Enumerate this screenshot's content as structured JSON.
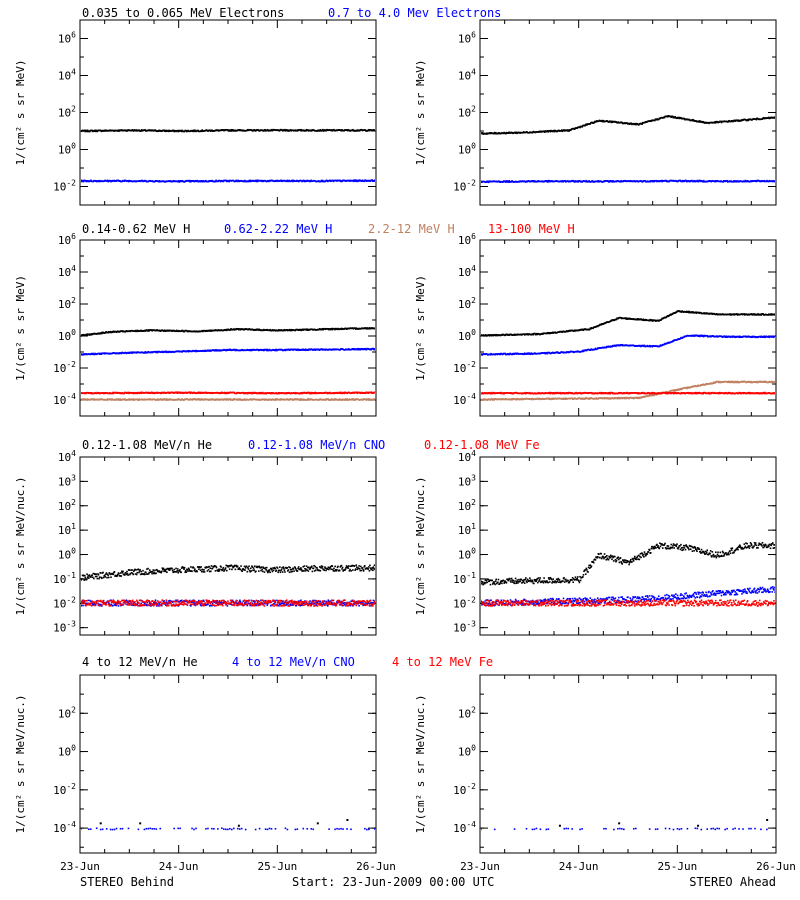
{
  "chart_data": [
    {
      "type": "scatter",
      "panel": "row1-behind",
      "ylabel": "1/(cm² s sr MeV)",
      "yscale": "log",
      "ylim": [
        0.001,
        10000000
      ],
      "ytick_exps": [
        -2,
        0,
        2,
        4,
        6
      ],
      "xlim": [
        0,
        3
      ],
      "x_tick_labels": [
        "23-Jun",
        "24-Jun",
        "25-Jun",
        "26-Jun"
      ],
      "series": [
        {
          "name": "0.035 to 0.065 MeV Electrons",
          "color": "#000000",
          "x": [
            0,
            0.5,
            1.0,
            1.5,
            2.0,
            2.5,
            3.0
          ],
          "y": [
            11,
            12,
            11,
            12,
            12,
            12,
            12
          ]
        },
        {
          "name": "0.7 to 4.0 Mev Electrons",
          "color": "#0000ff",
          "x": [
            0,
            0.5,
            1.0,
            1.5,
            2.0,
            2.5,
            3.0
          ],
          "y": [
            0.022,
            0.022,
            0.021,
            0.022,
            0.022,
            0.022,
            0.023
          ]
        }
      ]
    },
    {
      "type": "scatter",
      "panel": "row1-ahead",
      "ylabel": "1/(cm² s sr MeV)",
      "yscale": "log",
      "ylim": [
        0.001,
        10000000
      ],
      "ytick_exps": [
        -2,
        0,
        2,
        4,
        6
      ],
      "xlim": [
        0,
        3
      ],
      "x_tick_labels": [
        "23-Jun",
        "24-Jun",
        "25-Jun",
        "26-Jun"
      ],
      "series": [
        {
          "name": "0.035 to 0.065 MeV Electrons",
          "color": "#000000",
          "x": [
            0,
            0.4,
            0.9,
            1.2,
            1.6,
            1.9,
            2.3,
            2.6,
            3.0
          ],
          "y": [
            8,
            9,
            12,
            40,
            25,
            70,
            30,
            40,
            60
          ]
        },
        {
          "name": "0.7 to 4.0 Mev Electrons",
          "color": "#0000ff",
          "x": [
            0,
            0.5,
            1.0,
            1.5,
            2.0,
            2.5,
            3.0
          ],
          "y": [
            0.02,
            0.021,
            0.021,
            0.021,
            0.022,
            0.021,
            0.022
          ]
        }
      ]
    },
    {
      "type": "scatter",
      "panel": "row2-behind",
      "ylabel": "1/(cm² s sr MeV)",
      "yscale": "log",
      "ylim": [
        1e-05,
        1000000
      ],
      "ytick_exps": [
        -4,
        -2,
        0,
        2,
        4,
        6
      ],
      "xlim": [
        0,
        3
      ],
      "x_tick_labels": [
        "23-Jun",
        "24-Jun",
        "25-Jun",
        "26-Jun"
      ],
      "series": [
        {
          "name": "0.14-0.62 MeV H",
          "color": "#000000",
          "x": [
            0,
            0.3,
            0.7,
            1.2,
            1.6,
            2.0,
            2.5,
            3.0
          ],
          "y": [
            1.2,
            2,
            2.5,
            2.2,
            3,
            2.5,
            3,
            3.5
          ]
        },
        {
          "name": "0.62-2.22 MeV H",
          "color": "#0000ff",
          "x": [
            0,
            0.5,
            1.0,
            1.5,
            2.0,
            2.5,
            3.0
          ],
          "y": [
            0.08,
            0.1,
            0.12,
            0.15,
            0.15,
            0.16,
            0.17
          ]
        },
        {
          "name": "2.2-12 MeV H",
          "color": "#c08060",
          "x": [
            0,
            1.0,
            2.0,
            3.0
          ],
          "y": [
            0.00012,
            0.00012,
            0.00012,
            0.00012
          ]
        },
        {
          "name": "13-100 MeV H",
          "color": "#ff0000",
          "x": [
            0,
            1.0,
            2.0,
            3.0
          ],
          "y": [
            0.0003,
            0.00032,
            0.0003,
            0.00032
          ]
        }
      ]
    },
    {
      "type": "scatter",
      "panel": "row2-ahead",
      "ylabel": "1/(cm² s sr MeV)",
      "yscale": "log",
      "ylim": [
        1e-05,
        1000000
      ],
      "ytick_exps": [
        -4,
        -2,
        0,
        2,
        4,
        6
      ],
      "xlim": [
        0,
        3
      ],
      "x_tick_labels": [
        "23-Jun",
        "24-Jun",
        "25-Jun",
        "26-Jun"
      ],
      "series": [
        {
          "name": "0.14-0.62 MeV H",
          "color": "#000000",
          "x": [
            0,
            0.6,
            1.1,
            1.4,
            1.8,
            2.0,
            2.4,
            3.0
          ],
          "y": [
            1.2,
            1.5,
            3,
            15,
            10,
            40,
            25,
            25
          ]
        },
        {
          "name": "0.62-2.22 MeV H",
          "color": "#0000ff",
          "x": [
            0,
            0.6,
            1.0,
            1.4,
            1.8,
            2.1,
            2.5,
            3.0
          ],
          "y": [
            0.08,
            0.09,
            0.12,
            0.3,
            0.25,
            1.2,
            1.0,
            1.0
          ]
        },
        {
          "name": "2.2-12 MeV H",
          "color": "#c08060",
          "x": [
            0,
            1.6,
            2.0,
            2.4,
            3.0
          ],
          "y": [
            0.00012,
            0.00015,
            0.0005,
            0.0015,
            0.0015
          ]
        },
        {
          "name": "13-100 MeV H",
          "color": "#ff0000",
          "x": [
            0,
            1.0,
            2.0,
            3.0
          ],
          "y": [
            0.0003,
            0.0003,
            0.0003,
            0.0003
          ]
        }
      ]
    },
    {
      "type": "scatter",
      "panel": "row3-behind",
      "ylabel": "1/(cm² s sr MeV/nuc.)",
      "yscale": "log",
      "ylim": [
        0.0005,
        10000
      ],
      "ytick_exps": [
        -3,
        -2,
        -1,
        0,
        1,
        2,
        3,
        4
      ],
      "xlim": [
        0,
        3
      ],
      "x_tick_labels": [
        "23-Jun",
        "24-Jun",
        "25-Jun",
        "26-Jun"
      ],
      "series": [
        {
          "name": "0.12-1.08 MeV/n He",
          "color": "#000000",
          "x": [
            0,
            0.5,
            1.0,
            1.5,
            2.0,
            2.5,
            3.0
          ],
          "y": [
            0.12,
            0.2,
            0.25,
            0.3,
            0.25,
            0.3,
            0.3
          ]
        },
        {
          "name": "0.12-1.08 MeV/n CNO",
          "color": "#0000ff",
          "x": [
            0,
            1.0,
            2.0,
            3.0
          ],
          "y": [
            0.011,
            0.011,
            0.011,
            0.011
          ]
        },
        {
          "name": "0.12-1.08 MeV Fe",
          "color": "#ff0000",
          "x": [
            0,
            1.0,
            2.0,
            3.0
          ],
          "y": [
            0.011,
            0.011,
            0.011,
            0.011
          ]
        }
      ]
    },
    {
      "type": "scatter",
      "panel": "row3-ahead",
      "ylabel": "1/(cm² s sr MeV/nuc.)",
      "yscale": "log",
      "ylim": [
        0.0005,
        10000
      ],
      "ytick_exps": [
        -3,
        -2,
        -1,
        0,
        1,
        2,
        3,
        4
      ],
      "xlim": [
        0,
        3
      ],
      "x_tick_labels": [
        "23-Jun",
        "24-Jun",
        "25-Jun",
        "26-Jun"
      ],
      "series": [
        {
          "name": "0.12-1.08 MeV/n He",
          "color": "#000000",
          "x": [
            0,
            0.5,
            1.0,
            1.2,
            1.5,
            1.8,
            2.1,
            2.4,
            2.7,
            3.0
          ],
          "y": [
            0.08,
            0.09,
            0.1,
            1.0,
            0.5,
            2.5,
            2.0,
            1.0,
            2.5,
            2.5
          ]
        },
        {
          "name": "0.12-1.08 MeV/n CNO",
          "color": "#0000ff",
          "x": [
            0,
            1.5,
            2.0,
            2.5,
            3.0
          ],
          "y": [
            0.011,
            0.015,
            0.02,
            0.03,
            0.04
          ]
        },
        {
          "name": "0.12-1.08 MeV Fe",
          "color": "#ff0000",
          "x": [
            0,
            1.0,
            2.0,
            3.0
          ],
          "y": [
            0.011,
            0.011,
            0.011,
            0.011
          ]
        }
      ]
    },
    {
      "type": "scatter",
      "panel": "row4-behind",
      "ylabel": "1/(cm² s sr MeV/nuc.)",
      "yscale": "log",
      "ylim": [
        5e-06,
        10000
      ],
      "ytick_exps": [
        -4,
        -2,
        0,
        2
      ],
      "xlim": [
        0,
        3
      ],
      "x_tick_labels": [
        "23-Jun",
        "24-Jun",
        "25-Jun",
        "26-Jun"
      ],
      "series": [
        {
          "name": "4 to 12 MeV/n He",
          "color": "#000000",
          "x": [
            0.2,
            0.6,
            1.6,
            2.4,
            2.7
          ],
          "y": [
            0.0002,
            0.0002,
            0.00015,
            0.0002,
            0.0003
          ]
        },
        {
          "name": "4 to 12 MeV/n CNO",
          "color": "#0000ff",
          "x": [
            0,
            1.0,
            2.0,
            3.0
          ],
          "y": [
            0.0001,
            0.0001,
            0.0001,
            0.0001
          ]
        },
        {
          "name": "4 to 12 MeV Fe",
          "color": "#ff0000",
          "x": [],
          "y": []
        }
      ]
    },
    {
      "type": "scatter",
      "panel": "row4-ahead",
      "ylabel": "1/(cm² s sr MeV/nuc.)",
      "yscale": "log",
      "ylim": [
        5e-06,
        10000
      ],
      "ytick_exps": [
        -4,
        -2,
        0,
        2
      ],
      "xlim": [
        0,
        3
      ],
      "x_tick_labels": [
        "23-Jun",
        "24-Jun",
        "25-Jun",
        "26-Jun"
      ],
      "series": [
        {
          "name": "4 to 12 MeV/n He",
          "color": "#000000",
          "x": [
            0.8,
            1.4,
            2.2,
            2.9
          ],
          "y": [
            0.00015,
            0.0002,
            0.00015,
            0.0003
          ]
        },
        {
          "name": "4 to 12 MeV/n CNO",
          "color": "#0000ff",
          "x": [
            0,
            1.0,
            2.0,
            3.0
          ],
          "y": [
            0.0001,
            0.0001,
            0.0001,
            0.0001
          ]
        },
        {
          "name": "4 to 12 MeV Fe",
          "color": "#ff0000",
          "x": [],
          "y": []
        }
      ]
    }
  ],
  "row_titles": [
    [
      {
        "text": "0.035 to 0.065 MeV Electrons",
        "color": "#000000"
      },
      {
        "text": "0.7 to 4.0 Mev Electrons",
        "color": "#0000ff"
      }
    ],
    [
      {
        "text": "0.14-0.62 MeV H",
        "color": "#000000"
      },
      {
        "text": "0.62-2.22 MeV H",
        "color": "#0000ff"
      },
      {
        "text": "2.2-12 MeV H",
        "color": "#c08060"
      },
      {
        "text": "13-100 MeV H",
        "color": "#ff0000"
      }
    ],
    [
      {
        "text": "0.12-1.08 MeV/n He",
        "color": "#000000"
      },
      {
        "text": "0.12-1.08 MeV/n CNO",
        "color": "#0000ff"
      },
      {
        "text": "0.12-1.08 MeV Fe",
        "color": "#ff0000"
      }
    ],
    [
      {
        "text": "4 to 12 MeV/n He",
        "color": "#000000"
      },
      {
        "text": "4 to 12 MeV/n CNO",
        "color": "#0000ff"
      },
      {
        "text": "4 to 12 MeV Fe",
        "color": "#ff0000"
      }
    ]
  ],
  "footer": {
    "left": "STEREO Behind",
    "center": "Start: 23-Jun-2009 00:00 UTC",
    "right": "STEREO Ahead"
  }
}
